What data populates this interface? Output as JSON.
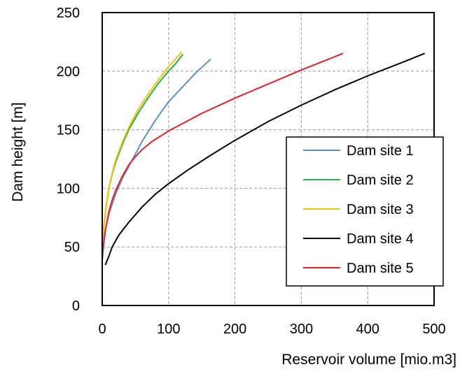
{
  "chart_data": {
    "type": "line",
    "title": "",
    "xlabel": "Reservoir volume  [mio.m3]",
    "ylabel": "Dam height [m]",
    "xlim": [
      0,
      500
    ],
    "ylim": [
      0,
      250
    ],
    "xticks": [
      0,
      100,
      200,
      300,
      400,
      500
    ],
    "yticks": [
      0,
      50,
      100,
      150,
      200,
      250
    ],
    "grid": true,
    "legend_position": "center-right",
    "series": [
      {
        "name": "Dam site 1",
        "color": "#5b8fc7",
        "x": [
          0,
          2,
          5,
          10,
          20,
          30,
          45,
          60,
          80,
          100,
          120,
          140,
          163
        ],
        "y": [
          40,
          55,
          65,
          78,
          95,
          108,
          124,
          140,
          158,
          174,
          186,
          198,
          210
        ]
      },
      {
        "name": "Dam site 2",
        "color": "#22b14c",
        "x": [
          0,
          1,
          3,
          6,
          10,
          15,
          20,
          30,
          40,
          55,
          70,
          85,
          100,
          110,
          121
        ],
        "y": [
          45,
          58,
          70,
          85,
          100,
          112,
          122,
          137,
          150,
          165,
          178,
          190,
          200,
          206,
          214
        ]
      },
      {
        "name": "Dam site 3",
        "color": "#f5c400",
        "x": [
          0,
          1,
          3,
          6,
          10,
          15,
          20,
          30,
          40,
          55,
          70,
          85,
          100,
          110,
          119
        ],
        "y": [
          45,
          58,
          70,
          85,
          100,
          113,
          124,
          139,
          152,
          168,
          181,
          193,
          204,
          210,
          216
        ]
      },
      {
        "name": "Dam site 4",
        "color": "#000000",
        "x": [
          5,
          10,
          15,
          25,
          40,
          60,
          80,
          100,
          130,
          160,
          200,
          250,
          300,
          350,
          400,
          450,
          485
        ],
        "y": [
          35,
          42,
          50,
          60,
          71,
          84,
          95,
          104,
          116,
          127,
          141,
          157,
          171,
          184,
          196,
          207,
          215
        ]
      },
      {
        "name": "Dam site 5",
        "color": "#e8202a",
        "x": [
          0,
          2,
          5,
          10,
          15,
          20,
          30,
          40,
          50,
          60,
          75,
          100,
          150,
          200,
          250,
          300,
          362
        ],
        "y": [
          38,
          52,
          65,
          80,
          90,
          98,
          110,
          120,
          127,
          133,
          140,
          149,
          164,
          177,
          189,
          201,
          215
        ]
      }
    ]
  }
}
